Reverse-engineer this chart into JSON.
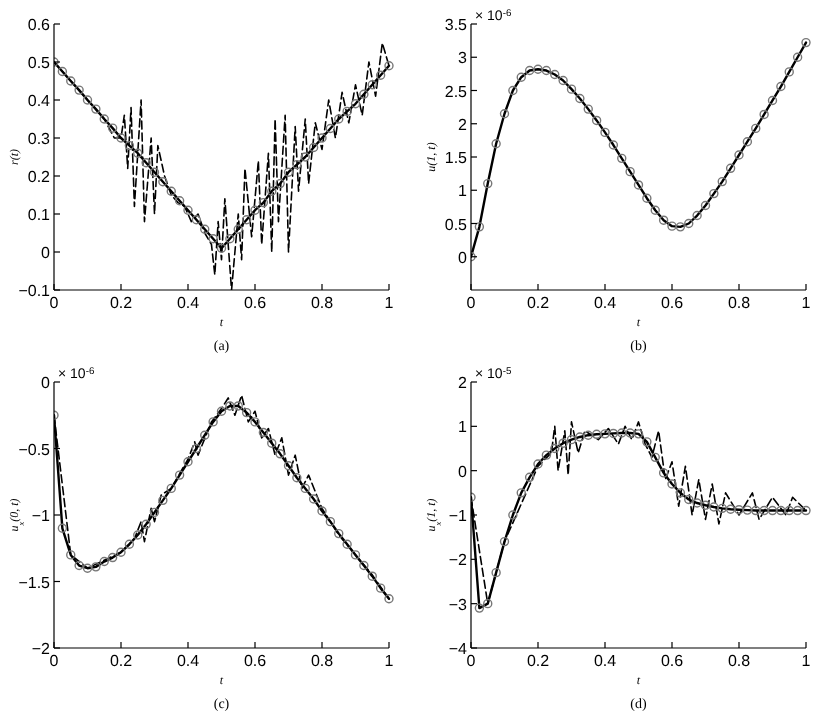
{
  "chart_data": [
    {
      "type": "line",
      "xlabel": "t",
      "ylabel": "r(t)",
      "annotations": [
        "(a)"
      ],
      "xlim": [
        0,
        1
      ],
      "ylim": [
        -0.1,
        0.6
      ],
      "xticks": [
        0,
        0.2,
        0.4,
        0.6,
        0.8,
        1
      ],
      "yticks": [
        -0.1,
        0,
        0.1,
        0.2,
        0.3,
        0.4,
        0.5,
        0.6
      ],
      "grid": false,
      "series": [
        {
          "color": "#000000",
          "line_style": "dashed",
          "marker": "none",
          "x": [
            0,
            0.05,
            0.1,
            0.15,
            0.18,
            0.2,
            0.21,
            0.22,
            0.23,
            0.24,
            0.26,
            0.27,
            0.29,
            0.3,
            0.31,
            0.33,
            0.35,
            0.37,
            0.39,
            0.41,
            0.43,
            0.45,
            0.47,
            0.48,
            0.49,
            0.5,
            0.51,
            0.53,
            0.55,
            0.56,
            0.57,
            0.59,
            0.61,
            0.62,
            0.64,
            0.65,
            0.66,
            0.67,
            0.69,
            0.7,
            0.72,
            0.73,
            0.75,
            0.76,
            0.78,
            0.8,
            0.82,
            0.84,
            0.86,
            0.88,
            0.9,
            0.92,
            0.94,
            0.96,
            0.98,
            1
          ],
          "values": [
            0.5,
            0.45,
            0.4,
            0.35,
            0.3,
            0.3,
            0.36,
            0.22,
            0.38,
            0.12,
            0.4,
            0.08,
            0.3,
            0.1,
            0.28,
            0.2,
            0.15,
            0.13,
            0.12,
            0.08,
            0.1,
            0.05,
            0.02,
            -0.06,
            0.08,
            -0.02,
            0.14,
            -0.1,
            0.1,
            -0.02,
            0.22,
            0.04,
            0.24,
            0.02,
            0.26,
            0,
            0.35,
            0.08,
            0.36,
            0,
            0.33,
            0.16,
            0.35,
            0.18,
            0.34,
            0.27,
            0.4,
            0.3,
            0.42,
            0.34,
            0.44,
            0.36,
            0.5,
            0.41,
            0.55,
            0.49
          ]
        },
        {
          "color": "#000000",
          "line_style": "solid",
          "marker": "circle",
          "x": [
            0,
            0.025,
            0.05,
            0.075,
            0.1,
            0.125,
            0.15,
            0.175,
            0.2,
            0.225,
            0.25,
            0.275,
            0.3,
            0.325,
            0.35,
            0.375,
            0.4,
            0.425,
            0.45,
            0.475,
            0.5,
            0.525,
            0.55,
            0.575,
            0.6,
            0.625,
            0.65,
            0.675,
            0.7,
            0.725,
            0.75,
            0.775,
            0.8,
            0.825,
            0.85,
            0.875,
            0.9,
            0.925,
            0.95,
            0.975,
            1
          ],
          "values": [
            0.5,
            0.475,
            0.45,
            0.426,
            0.4,
            0.376,
            0.35,
            0.326,
            0.3,
            0.28,
            0.26,
            0.235,
            0.21,
            0.185,
            0.16,
            0.135,
            0.11,
            0.085,
            0.06,
            0.035,
            0.01,
            0.035,
            0.06,
            0.085,
            0.11,
            0.13,
            0.16,
            0.18,
            0.21,
            0.23,
            0.25,
            0.275,
            0.3,
            0.325,
            0.35,
            0.37,
            0.39,
            0.415,
            0.44,
            0.465,
            0.49
          ]
        }
      ]
    },
    {
      "type": "line",
      "xlabel": "t",
      "ylabel": "u(1, t)",
      "annotations": [
        "× 10$^{-6}$",
        "(b)"
      ],
      "xlim": [
        0,
        1
      ],
      "ylim": [
        -0.5,
        3.5
      ],
      "xticks": [
        0,
        0.2,
        0.4,
        0.6,
        0.8,
        1
      ],
      "yticks": [
        0,
        0.5,
        1,
        1.5,
        2,
        2.5,
        3,
        3.5
      ],
      "grid": false,
      "series": [
        {
          "color": "#000000",
          "line_style": "solid",
          "marker": "circle",
          "x": [
            0,
            0.025,
            0.05,
            0.075,
            0.1,
            0.125,
            0.15,
            0.175,
            0.2,
            0.225,
            0.25,
            0.275,
            0.3,
            0.325,
            0.35,
            0.375,
            0.4,
            0.425,
            0.45,
            0.475,
            0.5,
            0.525,
            0.55,
            0.575,
            0.6,
            0.625,
            0.65,
            0.675,
            0.7,
            0.725,
            0.75,
            0.775,
            0.8,
            0.825,
            0.85,
            0.875,
            0.9,
            0.925,
            0.95,
            0.975,
            1
          ],
          "values": [
            0,
            0.45,
            1.1,
            1.7,
            2.15,
            2.5,
            2.7,
            2.8,
            2.82,
            2.8,
            2.74,
            2.65,
            2.52,
            2.38,
            2.22,
            2.05,
            1.87,
            1.68,
            1.48,
            1.28,
            1.08,
            0.88,
            0.7,
            0.55,
            0.46,
            0.45,
            0.5,
            0.62,
            0.77,
            0.95,
            1.13,
            1.33,
            1.53,
            1.73,
            1.93,
            2.14,
            2.35,
            2.56,
            2.78,
            3,
            3.22
          ]
        }
      ]
    },
    {
      "type": "line",
      "xlabel": "t",
      "ylabel": "u$_{x}$(0, t)",
      "annotations": [
        "× 10$^{-6}$",
        "(c)"
      ],
      "xlim": [
        0,
        1
      ],
      "ylim": [
        -2,
        0
      ],
      "xticks": [
        0,
        0.2,
        0.4,
        0.6,
        0.8,
        1
      ],
      "yticks": [
        -2,
        -1.5,
        -1,
        -0.5,
        0
      ],
      "grid": false,
      "series": [
        {
          "color": "#000000",
          "line_style": "dashed",
          "marker": "none",
          "x": [
            0,
            0.05,
            0.1,
            0.2,
            0.24,
            0.26,
            0.27,
            0.29,
            0.3,
            0.32,
            0.35,
            0.4,
            0.42,
            0.43,
            0.47,
            0.5,
            0.52,
            0.54,
            0.56,
            0.58,
            0.6,
            0.62,
            0.64,
            0.66,
            0.68,
            0.7,
            0.72,
            0.74,
            0.76,
            0.8,
            0.85,
            0.9,
            0.95,
            1
          ],
          "values": [
            -0.25,
            -1.3,
            -1.4,
            -1.28,
            -1.18,
            -1.05,
            -1.2,
            -0.95,
            -1.05,
            -0.85,
            -0.8,
            -0.58,
            -0.45,
            -0.55,
            -0.3,
            -0.2,
            -0.12,
            -0.25,
            -0.1,
            -0.3,
            -0.22,
            -0.42,
            -0.35,
            -0.55,
            -0.42,
            -0.7,
            -0.55,
            -0.8,
            -0.7,
            -0.95,
            -1.15,
            -1.3,
            -1.45,
            -1.63
          ]
        },
        {
          "color": "#000000",
          "line_style": "solid",
          "marker": "circle",
          "x": [
            0,
            0.025,
            0.05,
            0.075,
            0.1,
            0.125,
            0.15,
            0.175,
            0.2,
            0.225,
            0.25,
            0.275,
            0.3,
            0.325,
            0.35,
            0.375,
            0.4,
            0.425,
            0.45,
            0.475,
            0.5,
            0.525,
            0.55,
            0.575,
            0.6,
            0.625,
            0.65,
            0.675,
            0.7,
            0.725,
            0.75,
            0.775,
            0.8,
            0.825,
            0.85,
            0.875,
            0.9,
            0.925,
            0.95,
            0.975,
            1
          ],
          "values": [
            -0.25,
            -1.1,
            -1.3,
            -1.38,
            -1.4,
            -1.39,
            -1.35,
            -1.32,
            -1.28,
            -1.22,
            -1.15,
            -1.07,
            -0.98,
            -0.89,
            -0.8,
            -0.7,
            -0.6,
            -0.5,
            -0.4,
            -0.3,
            -0.22,
            -0.18,
            -0.18,
            -0.23,
            -0.3,
            -0.38,
            -0.46,
            -0.54,
            -0.63,
            -0.72,
            -0.8,
            -0.88,
            -0.97,
            -1.05,
            -1.14,
            -1.22,
            -1.3,
            -1.38,
            -1.46,
            -1.55,
            -1.63
          ]
        }
      ]
    },
    {
      "type": "line",
      "xlabel": "t",
      "ylabel": "u$_{x}$(1, t)",
      "annotations": [
        "× 10$^{-5}$",
        "(d)"
      ],
      "xlim": [
        0,
        1
      ],
      "ylim": [
        -4,
        2
      ],
      "xticks": [
        0,
        0.2,
        0.4,
        0.6,
        0.8,
        1
      ],
      "yticks": [
        -4,
        -3,
        -2,
        -1,
        0,
        1,
        2
      ],
      "grid": false,
      "series": [
        {
          "color": "#000000",
          "line_style": "dashed",
          "marker": "none",
          "x": [
            0,
            0.05,
            0.1,
            0.2,
            0.24,
            0.25,
            0.26,
            0.28,
            0.29,
            0.3,
            0.32,
            0.34,
            0.38,
            0.41,
            0.44,
            0.46,
            0.48,
            0.5,
            0.52,
            0.54,
            0.56,
            0.58,
            0.6,
            0.62,
            0.64,
            0.66,
            0.68,
            0.7,
            0.72,
            0.74,
            0.76,
            0.8,
            0.84,
            0.86,
            0.9,
            0.94,
            0.96,
            1
          ],
          "values": [
            -0.6,
            -3,
            -1.6,
            0.1,
            0.4,
            1,
            0,
            0.9,
            -0.1,
            1.1,
            0.4,
            0.9,
            0.7,
            0.95,
            0.6,
            1,
            0.7,
            1.1,
            0.6,
            0.3,
            0.9,
            -0.2,
            0.2,
            -0.8,
            0.1,
            -1,
            -0.2,
            -1.1,
            -0.3,
            -1.2,
            -0.5,
            -1,
            -0.5,
            -1.1,
            -0.6,
            -1,
            -0.6,
            -0.9
          ]
        },
        {
          "color": "#000000",
          "line_style": "solid",
          "marker": "circle",
          "x": [
            0,
            0.025,
            0.05,
            0.075,
            0.1,
            0.125,
            0.15,
            0.175,
            0.2,
            0.225,
            0.25,
            0.275,
            0.3,
            0.325,
            0.35,
            0.375,
            0.4,
            0.425,
            0.45,
            0.475,
            0.5,
            0.525,
            0.55,
            0.575,
            0.6,
            0.625,
            0.65,
            0.675,
            0.7,
            0.725,
            0.75,
            0.775,
            0.8,
            0.825,
            0.85,
            0.875,
            0.9,
            0.925,
            0.95,
            0.975,
            1
          ],
          "values": [
            -0.6,
            -3.1,
            -3,
            -2.3,
            -1.6,
            -1,
            -0.5,
            -0.15,
            0.15,
            0.35,
            0.5,
            0.62,
            0.7,
            0.76,
            0.8,
            0.82,
            0.83,
            0.84,
            0.85,
            0.85,
            0.83,
            0.65,
            0.3,
            -0.05,
            -0.3,
            -0.5,
            -0.65,
            -0.73,
            -0.78,
            -0.82,
            -0.85,
            -0.87,
            -0.88,
            -0.89,
            -0.9,
            -0.9,
            -0.9,
            -0.9,
            -0.9,
            -0.9,
            -0.9
          ]
        }
      ]
    }
  ]
}
